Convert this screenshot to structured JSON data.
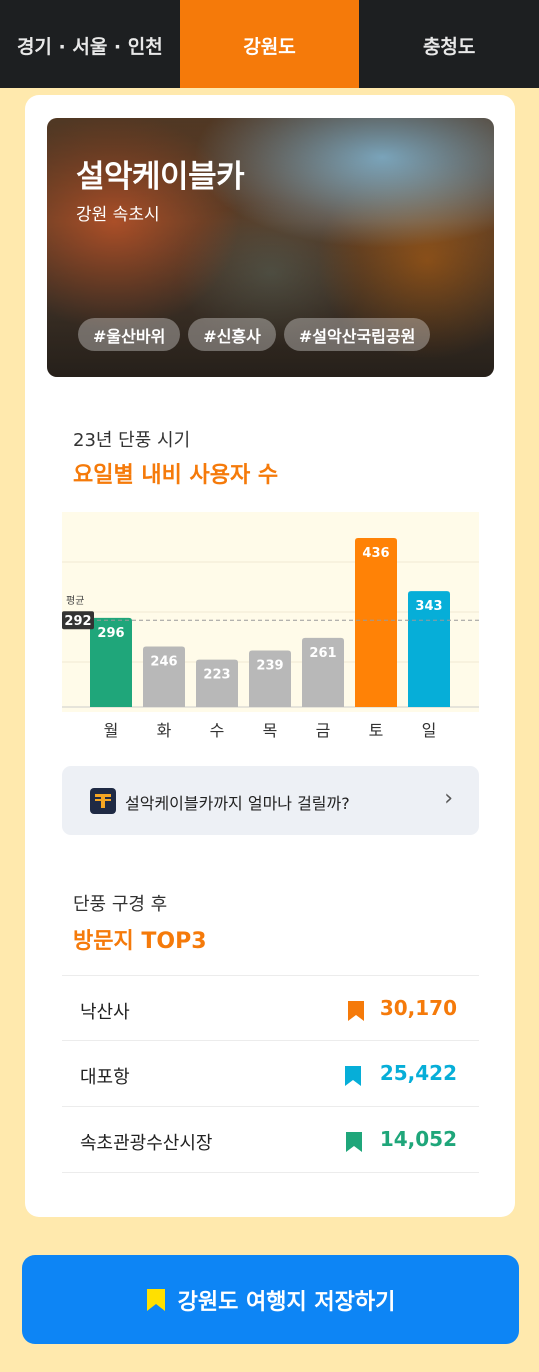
{
  "tabs": [
    {
      "label": "경기 · 서울 · 인천"
    },
    {
      "label": "강원도"
    },
    {
      "label": "충청도"
    }
  ],
  "hero": {
    "title": "설악케이블카",
    "location": "강원 속초시",
    "tags": [
      "#울산바위",
      "#신흥사",
      "#설악산국립공원"
    ]
  },
  "usage": {
    "subtitle": "23년 단풍 시기",
    "title": "요일별 내비 사용자 수"
  },
  "chart_data": {
    "type": "bar",
    "categories": [
      "월",
      "화",
      "수",
      "목",
      "금",
      "토",
      "일"
    ],
    "values": [
      296,
      246,
      223,
      239,
      261,
      436,
      343
    ],
    "bar_colors": [
      "#1fa67a",
      "#b8b8b8",
      "#b8b8b8",
      "#b8b8b8",
      "#b8b8b8",
      "#ff8206",
      "#06aed8"
    ],
    "average": {
      "label": "평균",
      "value": 292
    },
    "ylim": [
      140,
      450
    ]
  },
  "nav": {
    "text": "설악케이블카까지 얼마나 걸릴까?",
    "icon": "t-map-icon",
    "chevron": "›"
  },
  "top3": {
    "subtitle": "단풍 구경 후",
    "title": "방문지 TOP3",
    "items": [
      {
        "name": "낙산사",
        "value": "30,170",
        "color": "#f57a0a",
        "icon": "bookmark-icon"
      },
      {
        "name": "대포항",
        "value": "25,422",
        "color": "#06aed8",
        "icon": "bookmark-icon"
      },
      {
        "name": "속초관광수산시장",
        "value": "14,052",
        "color": "#1fa67a",
        "icon": "bookmark-icon"
      }
    ]
  },
  "save_button": {
    "label": "강원도 여행지 저장하기",
    "icon_color": "#ffe000"
  }
}
